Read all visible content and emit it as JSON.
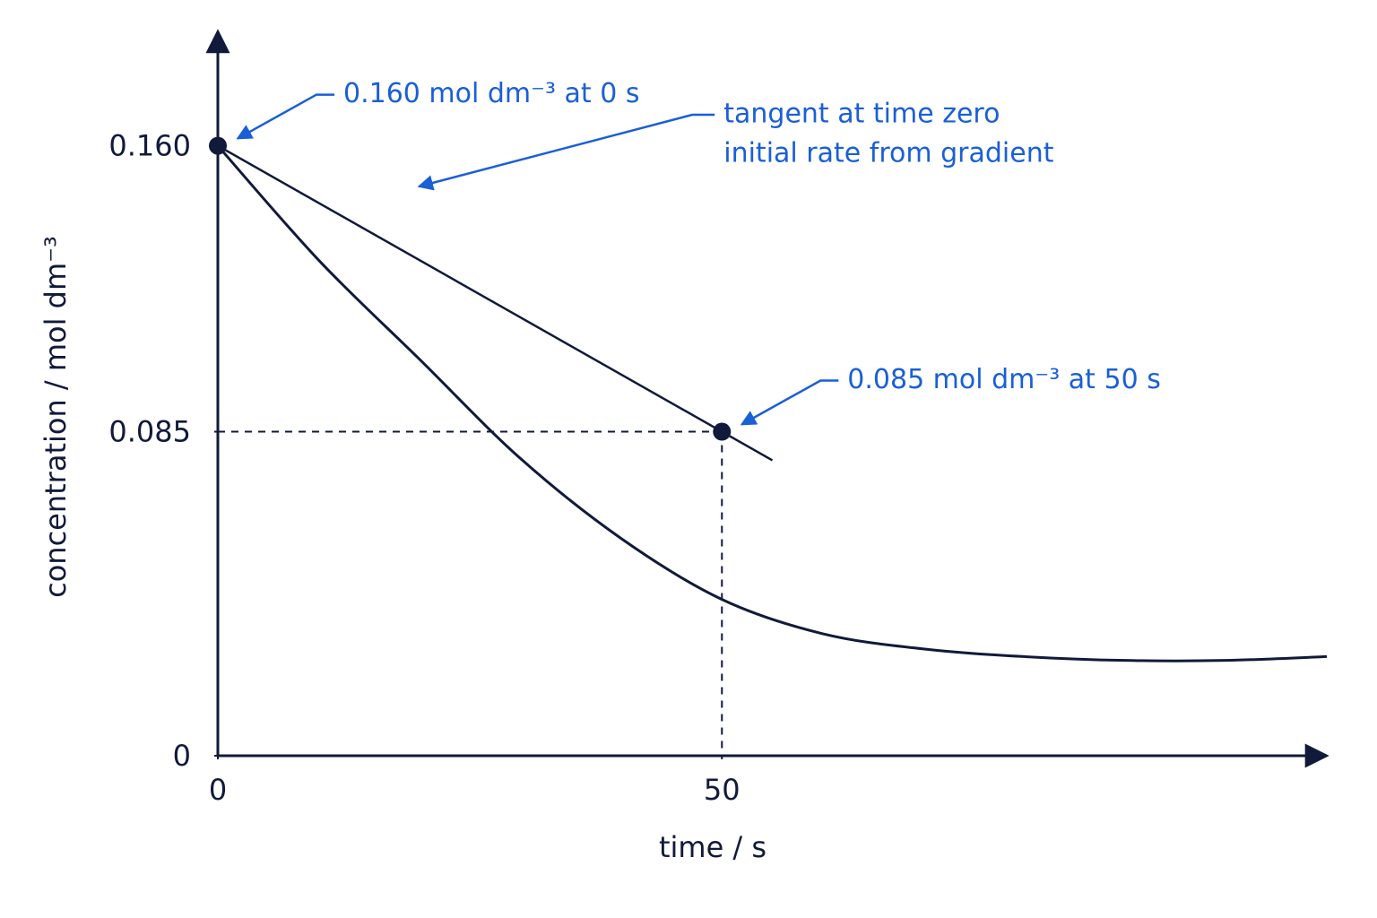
{
  "chart_data": {
    "type": "line",
    "x_label": "time / s",
    "y_label": "concentration / mol dm⁻³",
    "xlim": [
      0,
      110
    ],
    "ylim": [
      0,
      0.19
    ],
    "xticks": [
      0,
      50
    ],
    "yticks": [
      0,
      0.085,
      {
        "value": 0.16,
        "label": "0.160"
      }
    ],
    "color": "#111a3a",
    "annotation_color": "#1a5fd6",
    "curve": {
      "x": [
        0,
        10,
        20,
        30,
        40,
        50,
        60,
        70,
        80,
        90,
        100,
        110
      ],
      "values": [
        0.16,
        0.13,
        0.104,
        0.078,
        0.057,
        0.041,
        0.032,
        0.028,
        0.026,
        0.025,
        0.025,
        0.026
      ]
    },
    "tangent": {
      "x": [
        0,
        55
      ],
      "values": [
        0.16,
        0.0775
      ],
      "label_lines": [
        "tangent at time zero",
        "initial rate from gradient"
      ]
    },
    "points": [
      {
        "x": 0,
        "y": 0.16,
        "label": "0.160 mol dm⁻³ at 0 s"
      },
      {
        "x": 50,
        "y": 0.085,
        "label": "0.085 mol dm⁻³ at 50 s"
      }
    ]
  }
}
